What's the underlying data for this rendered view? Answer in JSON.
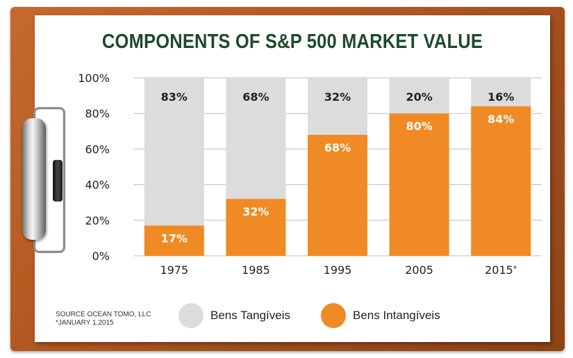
{
  "title": "COMPONENTS OF S&P 500 MARKET VALUE",
  "source": {
    "line1": "SOURCE OCEAN TOMO, LLC",
    "line2": "*JANUARY 1,2015"
  },
  "legend": [
    {
      "label": "Bens Tangíveis",
      "color": "#dcdcdc"
    },
    {
      "label": "Bens Intangíveis",
      "color": "#f08a24"
    }
  ],
  "chart_data": {
    "type": "bar",
    "stacked": true,
    "categories": [
      "1975",
      "1985",
      "1995",
      "2005",
      "2015*"
    ],
    "series": [
      {
        "name": "Bens Intangíveis",
        "values": [
          17,
          32,
          68,
          80,
          84
        ],
        "labels": [
          "17%",
          "32%",
          "68%",
          "80%",
          "84%"
        ],
        "color": "#f08a24",
        "label_color": "#ffffff"
      },
      {
        "name": "Bens Tangíveis",
        "values": [
          83,
          68,
          32,
          20,
          16
        ],
        "labels": [
          "83%",
          "68%",
          "32%",
          "20%",
          "16%"
        ],
        "color": "#dcdcdc",
        "label_color": "#222222"
      }
    ],
    "yticks": [
      "0%",
      "20%",
      "40%",
      "60%",
      "80%",
      "100%"
    ],
    "ylim": [
      0,
      100
    ],
    "grid": true,
    "legend_position": "bottom"
  }
}
